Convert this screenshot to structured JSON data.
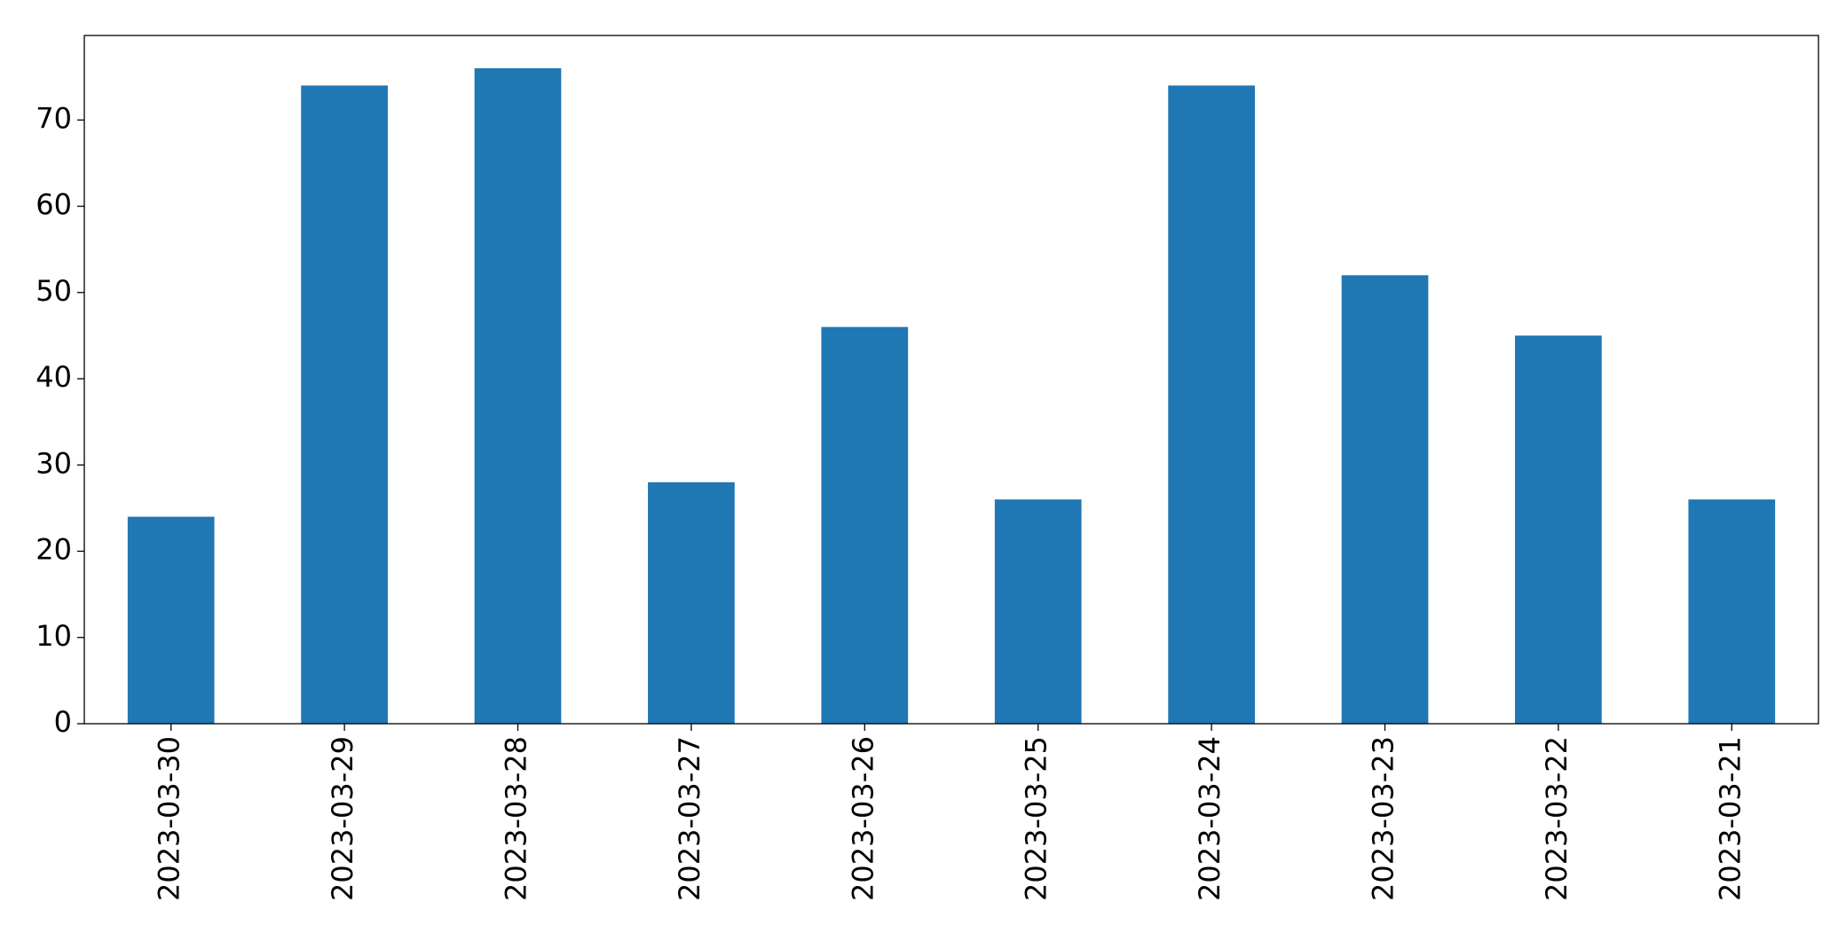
{
  "chart_data": {
    "type": "bar",
    "categories": [
      "2023-03-30",
      "2023-03-29",
      "2023-03-28",
      "2023-03-27",
      "2023-03-26",
      "2023-03-25",
      "2023-03-24",
      "2023-03-23",
      "2023-03-22",
      "2023-03-21"
    ],
    "values": [
      24,
      74,
      76,
      28,
      46,
      26,
      74,
      52,
      45,
      26
    ],
    "color": "#1f77b4",
    "ylim": [
      0,
      79.8
    ],
    "yticks": [
      0,
      10,
      20,
      30,
      40,
      50,
      60,
      70
    ],
    "grid": false
  }
}
